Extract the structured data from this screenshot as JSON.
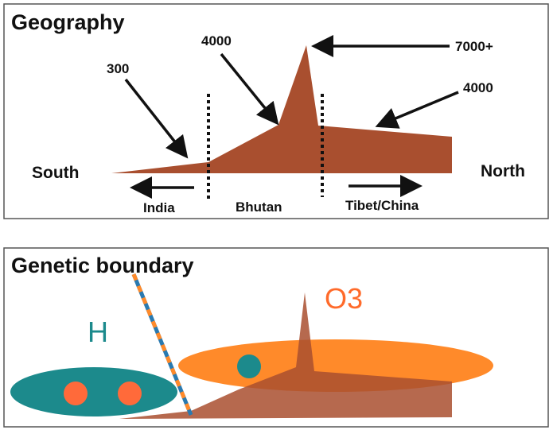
{
  "panels": [
    {
      "title": "Geography",
      "labels": {
        "low": "300",
        "mid": "4000",
        "peak": "7000+",
        "plateau": "4000",
        "south": "South",
        "north": "North",
        "india": "India",
        "bhutan": "Bhutan",
        "tibet": "Tibet/China"
      }
    },
    {
      "title": "Genetic boundary",
      "labels": {
        "h": "H",
        "o3": "O3"
      }
    }
  ]
}
